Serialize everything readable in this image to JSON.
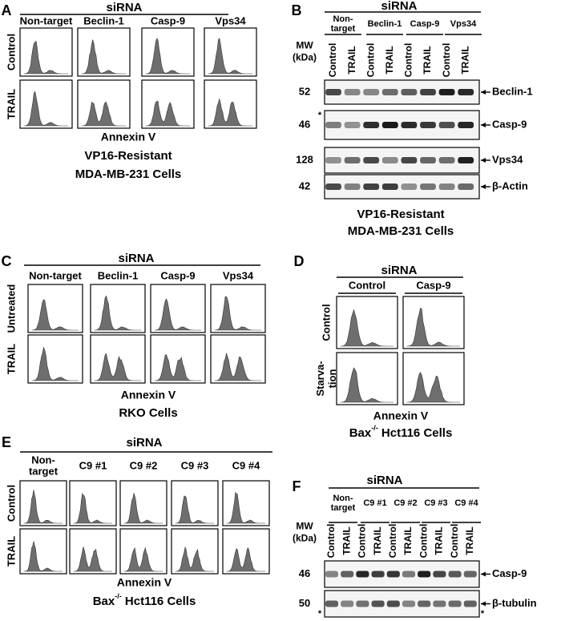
{
  "panels": [
    {
      "id": "A",
      "kind": "flow",
      "letter": "A",
      "siRNA": "siRNA",
      "columns": [
        [
          "Non-target"
        ],
        [
          "Beclin-1"
        ],
        [
          "Casp-9"
        ],
        [
          "Vps34"
        ]
      ],
      "rows": [
        [
          "Control"
        ],
        [
          "TRAIL"
        ]
      ],
      "xlabel": "Annexin V",
      "caption": [
        "VP16-Resistant",
        "MDA-MB-231 Cells"
      ]
    },
    {
      "id": "B",
      "kind": "blot",
      "letter": "B",
      "siRNA": "siRNA",
      "groups": [
        [
          "Non-",
          "target"
        ],
        [
          "Beclin-1"
        ],
        [
          "Casp-9"
        ],
        [
          "Vps34"
        ]
      ],
      "lanes": [
        "Control",
        "TRAIL",
        "Control",
        "TRAIL",
        "Control",
        "TRAIL",
        "Control",
        "TRAIL"
      ],
      "mw_header": [
        "MW",
        "(kDa)"
      ],
      "blots": [
        {
          "mw": 52,
          "label": "Beclin-1"
        },
        {
          "mw": 46,
          "label": "Casp-9",
          "marker": "*"
        },
        {
          "mw": 128,
          "label": "Vps34"
        },
        {
          "mw": 42,
          "label": "β-Actin"
        }
      ],
      "caption": [
        "VP16-Resistant",
        "MDA-MB-231 Cells"
      ]
    },
    {
      "id": "C",
      "kind": "flow",
      "letter": "C",
      "siRNA": "siRNA",
      "columns": [
        [
          "Non-target"
        ],
        [
          "Beclin-1"
        ],
        [
          "Casp-9"
        ],
        [
          "Vps34"
        ]
      ],
      "rows": [
        [
          "Untreated"
        ],
        [
          "TRAIL"
        ]
      ],
      "xlabel": "Annexin V",
      "caption": [
        "RKO Cells"
      ]
    },
    {
      "id": "D",
      "kind": "flow",
      "letter": "D",
      "siRNA": "siRNA",
      "columns": [
        [
          "Control"
        ],
        [
          "Casp-9"
        ]
      ],
      "rows": [
        [
          "Control"
        ],
        [
          "Starva-",
          "tion"
        ]
      ],
      "xlabel": "Annexin V",
      "caption": [
        {
          "text": "Bax",
          "sup": "-/-",
          "rest": " Hct116 Cells"
        }
      ]
    },
    {
      "id": "E",
      "kind": "flow",
      "letter": "E",
      "siRNA": "siRNA",
      "columns": [
        [
          "Non-",
          "target"
        ],
        [
          "C9 #1"
        ],
        [
          "C9 #2"
        ],
        [
          "C9 #3"
        ],
        [
          "C9 #4"
        ]
      ],
      "rows": [
        [
          "Control"
        ],
        [
          "TRAIL"
        ]
      ],
      "xlabel": "Annexin V",
      "caption": [
        {
          "text": "Bax",
          "sup": "-/-",
          "rest": " Hct116 Cells"
        }
      ]
    },
    {
      "id": "F",
      "kind": "blot",
      "letter": "F",
      "siRNA": "siRNA",
      "groups": [
        [
          "Non-",
          "target"
        ],
        [
          "C9 #1"
        ],
        [
          "C9 #2"
        ],
        [
          "C9 #3"
        ],
        [
          "C9 #4"
        ]
      ],
      "lanes": [
        "Control",
        "TRAIL",
        "Control",
        "TRAIL",
        "Control",
        "TRAIL",
        "Control",
        "TRAIL",
        "Control",
        "TRAIL"
      ],
      "mw_header": [
        "MW",
        "(kDa)"
      ],
      "blots": [
        {
          "mw": 46,
          "label": "Casp-9"
        },
        {
          "mw": 50,
          "label": "β-tubulin",
          "marker": "*"
        }
      ]
    }
  ]
}
